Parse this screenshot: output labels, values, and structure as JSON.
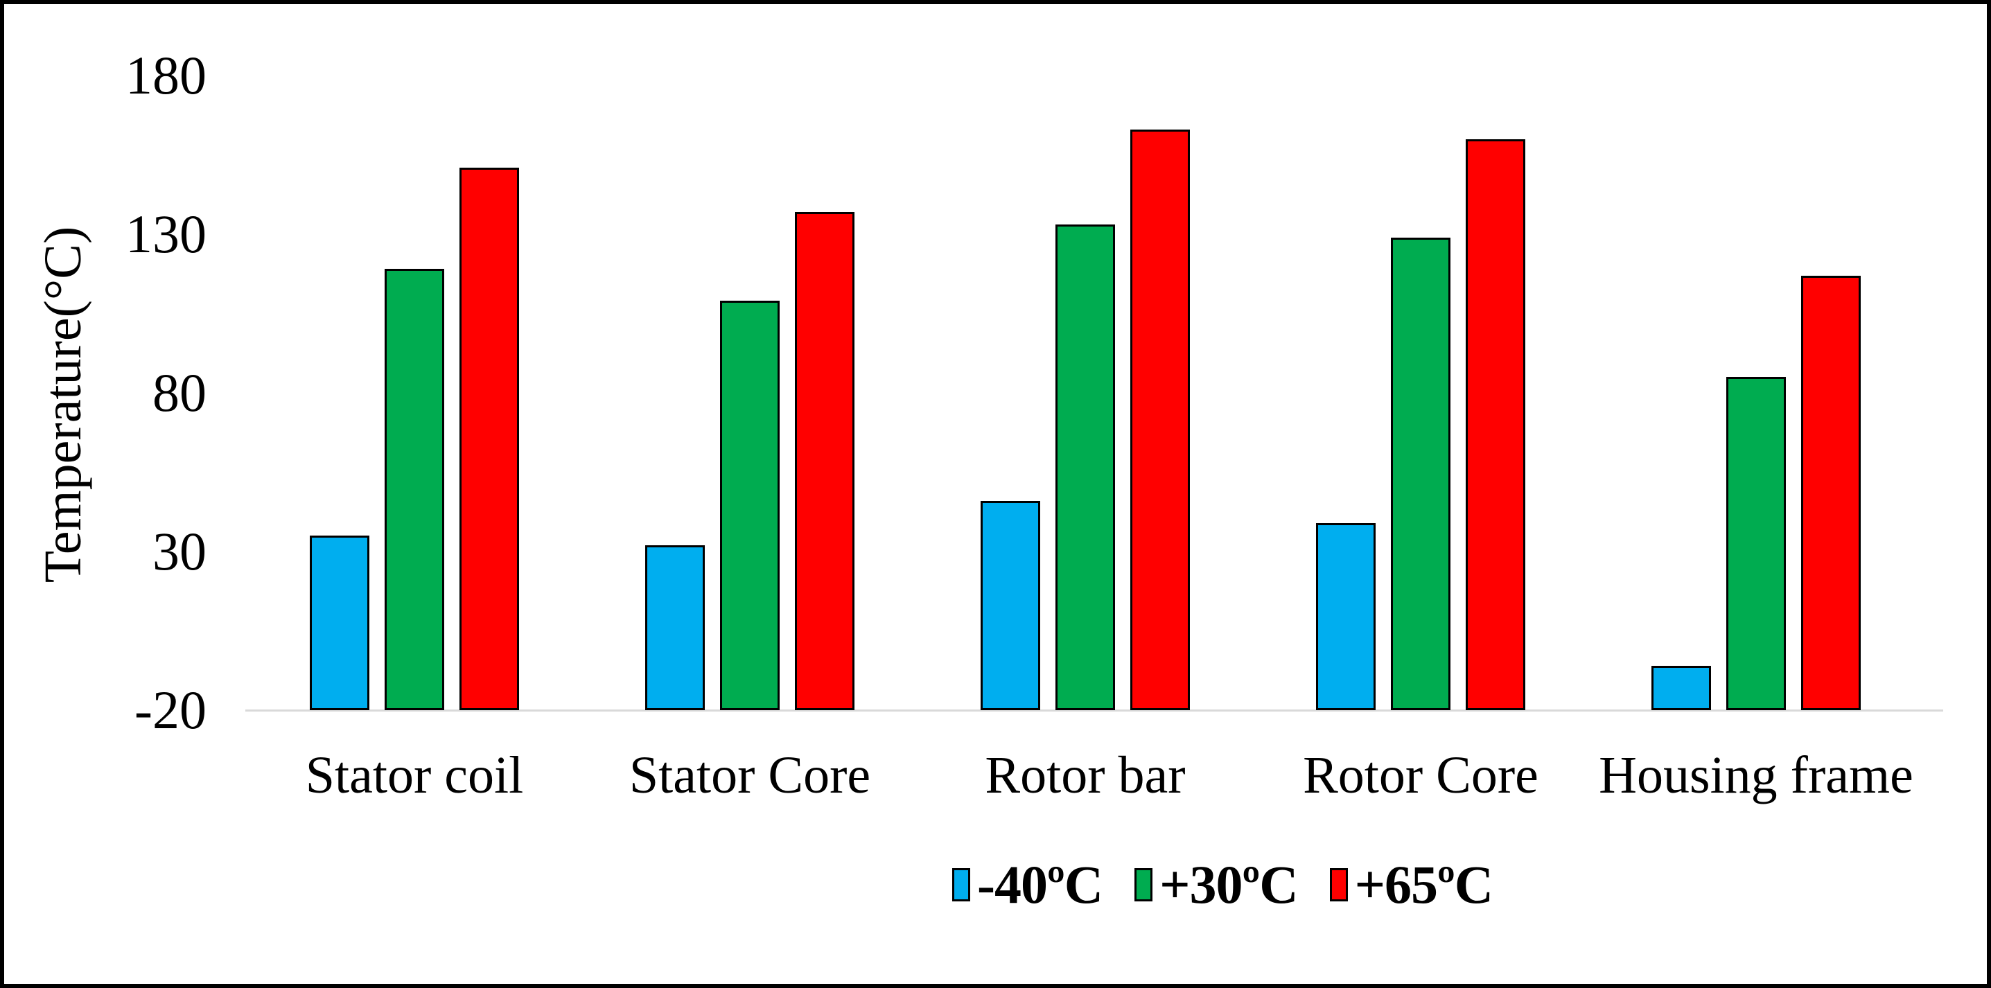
{
  "chart_data": {
    "type": "bar",
    "title": "",
    "categories": [
      "Stator coil",
      "Stator Core",
      "Rotor bar",
      "Rotor Core",
      "Housing frame"
    ],
    "series": [
      {
        "name": "-40ºC",
        "color": "#00AEEF",
        "values": [
          35,
          32,
          46,
          39,
          -6
        ]
      },
      {
        "name": "+30ºC",
        "color": "#00AC50",
        "values": [
          119,
          109,
          133,
          129,
          85
        ]
      },
      {
        "name": "+65ºC",
        "color": "#FF0000",
        "values": [
          151,
          137,
          163,
          160,
          117
        ]
      }
    ],
    "xlabel": "",
    "ylabel": "Temperature(°C)",
    "ylim": [
      -20,
      180
    ],
    "yticks": [
      180,
      130,
      80,
      30,
      -20
    ],
    "grid": false,
    "legend_position": "bottom"
  },
  "colors": {
    "background": "#FFFFFF",
    "frame_border": "#000000",
    "axis_line": "#D9D9D9",
    "bar_border": "#000000",
    "text": "#000000"
  }
}
